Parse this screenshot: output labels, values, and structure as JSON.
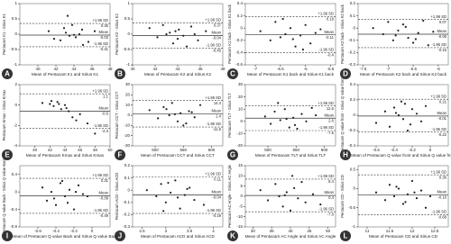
{
  "chart_data": [
    {
      "type": "scatter",
      "panel": "A",
      "x_label": "Mean of Pentacam K1 and Sirius K1",
      "y_label": "Pentacam K1 - Sirius K1",
      "xlim": [
        38,
        48
      ],
      "xticks": [
        40,
        42,
        44,
        46,
        48
      ],
      "ylim": [
        -1,
        1
      ],
      "yticks": [
        -1,
        -0.5,
        0,
        0.5,
        1
      ],
      "x": [
        41.2,
        42.5,
        43.1,
        43.8,
        44.2,
        44.6,
        45.0,
        42.9,
        43.5,
        44.9,
        45.6,
        46.3,
        41.8,
        43.3,
        44.0
      ],
      "y": [
        0.1,
        -0.2,
        0.05,
        0.3,
        -0.1,
        0.0,
        -0.35,
        0.2,
        -0.05,
        0.15,
        -0.25,
        0.1,
        -0.15,
        0.6,
        -0.02
      ],
      "limits": [
        {
          "label": "+1.96 SD",
          "value": 0.35
        },
        {
          "label": "Mean",
          "value": -0.03
        },
        {
          "label": "-1.96 SD",
          "value": -0.41
        }
      ]
    },
    {
      "type": "scatter",
      "panel": "B",
      "x_label": "Mean of Pentacam K2 and Sirius K2",
      "y_label": "Pentacam K2 - Sirius K2",
      "xlim": [
        40,
        48
      ],
      "xticks": [
        40,
        42,
        44,
        46,
        48
      ],
      "ylim": [
        -1,
        1
      ],
      "yticks": [
        -1,
        -0.5,
        0,
        0.5,
        1
      ],
      "x": [
        41.5,
        42.2,
        43.0,
        43.6,
        44.1,
        44.5,
        45.2,
        45.8,
        46.5,
        43.3,
        44.8,
        42.7,
        45.5,
        44.0,
        43.8
      ],
      "y": [
        0.2,
        -0.1,
        0.0,
        -0.3,
        0.15,
        -0.05,
        0.25,
        -0.2,
        0.1,
        0.05,
        -0.4,
        0.3,
        0.0,
        -0.15,
        0.1
      ],
      "limits": [
        {
          "label": "+1.96 SD",
          "value": 0.37
        },
        {
          "label": "Mean",
          "value": -0.04
        },
        {
          "label": "-1.96 SD",
          "value": -0.45
        }
      ]
    },
    {
      "type": "scatter",
      "panel": "C",
      "x_label": "Mean of Pentacam K1 back and Sirius K1 back",
      "y_label": "Pentacam K1 back - Sirius K1 back",
      "xlim": [
        -7.2,
        -5.4
      ],
      "xticks": [
        -7,
        -6.5,
        -6,
        -5.5
      ],
      "ylim": [
        -0.6,
        0.4
      ],
      "yticks": [
        -0.6,
        -0.4,
        -0.2,
        0,
        0.2,
        0.4
      ],
      "x": [
        -6.9,
        -6.7,
        -6.6,
        -6.5,
        -6.4,
        -6.3,
        -6.2,
        -6.1,
        -6.0,
        -5.9,
        -5.8,
        -6.45,
        -6.25,
        -6.05,
        -5.7
      ],
      "y": [
        -0.05,
        -0.2,
        0.1,
        -0.15,
        -0.1,
        0.0,
        -0.3,
        -0.12,
        0.05,
        -0.25,
        -0.08,
        0.15,
        -0.18,
        -0.35,
        -0.02
      ],
      "limits": [
        {
          "label": "+1.96 SD",
          "value": 0.19
        },
        {
          "label": "Mean",
          "value": -0.11
        },
        {
          "label": "-1.96 SD",
          "value": -0.4
        }
      ]
    },
    {
      "type": "scatter",
      "panel": "D",
      "x_label": "Mean of Pentacam K2 back and Sirius K2 back",
      "y_label": "Pentacam K2 back - Sirius K2 back",
      "xlim": [
        -7.6,
        -5.8
      ],
      "xticks": [
        -7.5,
        -7,
        -6.5,
        -6
      ],
      "ylim": [
        -0.3,
        0.2
      ],
      "yticks": [
        -0.3,
        -0.2,
        -0.1,
        0,
        0.1,
        0.2
      ],
      "x": [
        -7.3,
        -7.1,
        -7.0,
        -6.9,
        -6.8,
        -6.7,
        -6.6,
        -6.5,
        -6.4,
        -6.3,
        -6.2,
        -6.85,
        -6.65,
        -6.45,
        -6.1
      ],
      "y": [
        0.0,
        -0.05,
        0.05,
        -0.1,
        -0.02,
        0.03,
        -0.08,
        -0.12,
        -0.04,
        0.06,
        -0.14,
        -0.06,
        0.01,
        -0.09,
        -0.03
      ],
      "limits": [
        {
          "label": "+1.96 SD",
          "value": 0.07
        },
        {
          "label": "Mean",
          "value": -0.05
        },
        {
          "label": "-1.96 SD",
          "value": -0.16
        }
      ]
    },
    {
      "type": "scatter",
      "panel": "E",
      "x_label": "Mean of Pentacam Kmax and Sirius Kmax",
      "y_label": "Pentacam Kmax - Sirius Kmax",
      "xlim": [
        38,
        50
      ],
      "xticks": [
        40,
        42,
        44,
        46,
        48,
        50
      ],
      "ylim": [
        -4,
        2
      ],
      "yticks": [
        -4,
        -2,
        0,
        2
      ],
      "x": [
        41,
        42,
        42.5,
        43,
        43.5,
        44,
        44.5,
        45,
        46,
        47,
        48,
        43.2,
        44.2,
        45.5,
        42.2
      ],
      "y": [
        0.2,
        0.1,
        -0.1,
        0.3,
        -0.4,
        0.0,
        -0.6,
        -1.2,
        -0.9,
        -1.8,
        -2.8,
        0.1,
        -0.3,
        -1.5,
        0.4
      ],
      "limits": [
        {
          "label": "+1.96 SD",
          "value": 1.1
        },
        {
          "label": "Mean",
          "value": -0.6
        },
        {
          "label": "-1.96 SD",
          "value": -2.3
        }
      ]
    },
    {
      "type": "scatter",
      "panel": "F",
      "x_label": "Mean of Pentacam CCT and Sirius CCT",
      "y_label": "Pentacam CCT - Sirius CCT",
      "xlim": [
        460,
        620
      ],
      "xticks": [
        500,
        550,
        600
      ],
      "ylim": [
        -30,
        30
      ],
      "yticks": [
        -30,
        -20,
        -10,
        0,
        10,
        20,
        30
      ],
      "x": [
        490,
        505,
        515,
        525,
        530,
        540,
        545,
        550,
        560,
        570,
        580,
        535,
        555,
        520,
        565
      ],
      "y": [
        5,
        -3,
        8,
        0,
        12,
        -6,
        2,
        -10,
        4,
        -2,
        10,
        1,
        -8,
        6,
        3
      ],
      "limits": [
        {
          "label": "+1.96 SD",
          "value": 14.4
        },
        {
          "label": "Mean",
          "value": 1.4
        },
        {
          "label": "-1.96 SD",
          "value": -11.5
        }
      ]
    },
    {
      "type": "scatter",
      "panel": "G",
      "x_label": "Mean of Pentacam TLT and Sirius TLT",
      "y_label": "Pentacam TLT - Sirius TLT",
      "xlim": [
        460,
        620
      ],
      "xticks": [
        500,
        550,
        600
      ],
      "ylim": [
        -20,
        30
      ],
      "yticks": [
        -20,
        -10,
        0,
        10,
        20,
        30
      ],
      "x": [
        495,
        505,
        512,
        522,
        530,
        538,
        545,
        552,
        560,
        568,
        578,
        533,
        548,
        518,
        585
      ],
      "y": [
        4,
        -2,
        8,
        1,
        10,
        -5,
        3,
        -6,
        6,
        0,
        11,
        2,
        -3,
        15,
        5
      ],
      "limits": [
        {
          "label": "+1.96 SD",
          "value": 12.6
        },
        {
          "label": "Mean",
          "value": 2.6
        },
        {
          "label": "-1.96 SD",
          "value": -7.5
        }
      ]
    },
    {
      "type": "scatter",
      "panel": "H",
      "x_label": "Mean of Pentacam Q value front and Sirius Q value front",
      "y_label": "Pentacam Q value front - Sirius Q value front",
      "xlim": [
        -0.8,
        0.2
      ],
      "xticks": [
        -0.6,
        -0.4,
        -0.2,
        0
      ],
      "ylim": [
        -0.4,
        0.4
      ],
      "yticks": [
        -0.4,
        -0.2,
        0,
        0.2,
        0.4
      ],
      "x": [
        -0.6,
        -0.5,
        -0.45,
        -0.4,
        -0.35,
        -0.3,
        -0.28,
        -0.25,
        -0.2,
        -0.15,
        -0.1,
        -0.32,
        -0.22,
        -0.38,
        -0.05
      ],
      "y": [
        -0.1,
        0.05,
        -0.15,
        0.1,
        0.0,
        -0.05,
        0.15,
        -0.2,
        0.08,
        0.02,
        -0.08,
        0.18,
        -0.12,
        0.03,
        0.12
      ],
      "limits": [
        {
          "label": "+1.96 SD",
          "value": 0.21
        },
        {
          "label": "Mean",
          "value": -0.01
        },
        {
          "label": "-1.96 SD",
          "value": -0.22
        }
      ]
    },
    {
      "type": "scatter",
      "panel": "I",
      "x_label": "Mean of Pentacam Q value Back and Sirius Q value Back",
      "y_label": "Pentacam Q value Back - Sirius Q value Back",
      "xlim": [
        -0.8,
        0.2
      ],
      "xticks": [
        -0.6,
        -0.4,
        -0.2,
        0
      ],
      "ylim": [
        -0.8,
        0.6
      ],
      "yticks": [
        -0.8,
        -0.4,
        0,
        0.4
      ],
      "x": [
        -0.55,
        -0.5,
        -0.45,
        -0.4,
        -0.35,
        -0.3,
        -0.25,
        -0.2,
        -0.15,
        -0.1,
        -0.42,
        -0.33,
        -0.27,
        -0.18,
        -0.05
      ],
      "y": [
        0.1,
        -0.2,
        0.0,
        -0.3,
        0.2,
        -0.1,
        0.05,
        -0.4,
        0.15,
        -0.05,
        -0.15,
        0.25,
        -0.25,
        0.0,
        -0.1
      ],
      "limits": [
        {
          "label": "+1.96 SD",
          "value": 0.31
        },
        {
          "label": "Mean",
          "value": -0.09
        },
        {
          "label": "-1.96 SD",
          "value": -0.49
        }
      ]
    },
    {
      "type": "scatter",
      "panel": "J",
      "x_label": "Mean of Pentacam ACD and Sirius ACD",
      "y_label": "Pentacam ACD - Sirius ACD",
      "xlim": [
        2.3,
        4.2
      ],
      "xticks": [
        2.5,
        3,
        3.5,
        4
      ],
      "ylim": [
        -0.3,
        0.2
      ],
      "yticks": [
        -0.3,
        -0.2,
        -0.1,
        0,
        0.1,
        0.2
      ],
      "x": [
        2.6,
        2.8,
        2.9,
        3.0,
        3.1,
        3.2,
        3.3,
        3.4,
        3.5,
        3.6,
        3.8,
        3.05,
        3.25,
        3.45,
        2.95
      ],
      "y": [
        0.0,
        -0.05,
        0.05,
        -0.1,
        -0.02,
        0.08,
        -0.15,
        -0.04,
        0.02,
        -0.08,
        -0.12,
        0.06,
        -0.06,
        0.01,
        -0.17
      ],
      "limits": [
        {
          "label": "+1.96 SD",
          "value": 0.11
        },
        {
          "label": "Mean",
          "value": -0.04
        },
        {
          "label": "-1.96 SD",
          "value": -0.19
        }
      ]
    },
    {
      "type": "scatter",
      "panel": "K",
      "x_label": "Mean of Pentacam AC Angle and Sirius AC Angle",
      "y_label": "Pentacam AC Angle - Sirius AC Angle",
      "xlim": [
        28,
        52
      ],
      "xticks": [
        30,
        35,
        40,
        45,
        50
      ],
      "ylim": [
        -15,
        15
      ],
      "yticks": [
        -15,
        -10,
        -5,
        0,
        5,
        10,
        15
      ],
      "x": [
        32,
        34,
        36,
        37,
        38,
        39,
        40,
        41,
        42,
        43,
        44,
        46,
        48,
        40.5,
        38.5
      ],
      "y": [
        3,
        -2,
        6,
        0,
        -5,
        2,
        -7,
        4,
        -1,
        7,
        -3,
        1,
        -4,
        10,
        0.5
      ],
      "limits": [
        {
          "label": "+1.96 SD",
          "value": 8.4
        },
        {
          "label": "Mean",
          "value": 0.4
        },
        {
          "label": "-1.96 SD",
          "value": -7.6
        }
      ]
    },
    {
      "type": "scatter",
      "panel": "L",
      "x_label": "Mean of Pentacam CD and Sirius CD",
      "y_label": "Pentacam CD - Sirius CD",
      "xlim": [
        10.8,
        12.8
      ],
      "xticks": [
        11,
        11.5,
        12,
        12.5
      ],
      "ylim": [
        -1,
        0.6
      ],
      "yticks": [
        -1,
        -0.5,
        0,
        0.5
      ],
      "x": [
        11.2,
        11.4,
        11.5,
        11.6,
        11.7,
        11.8,
        11.9,
        12.0,
        12.1,
        12.2,
        12.3,
        11.65,
        11.85,
        12.05,
        12.4
      ],
      "y": [
        -0.1,
        -0.3,
        0.1,
        -0.2,
        0.0,
        -0.4,
        -0.15,
        0.2,
        -0.25,
        -0.05,
        -0.5,
        0.05,
        -0.35,
        -0.1,
        -0.2
      ],
      "limits": [
        {
          "label": "+1.96 SD",
          "value": 0.36
        },
        {
          "label": "Mean",
          "value": -0.16
        },
        {
          "label": "-1.96 SD",
          "value": -0.68
        }
      ]
    }
  ]
}
